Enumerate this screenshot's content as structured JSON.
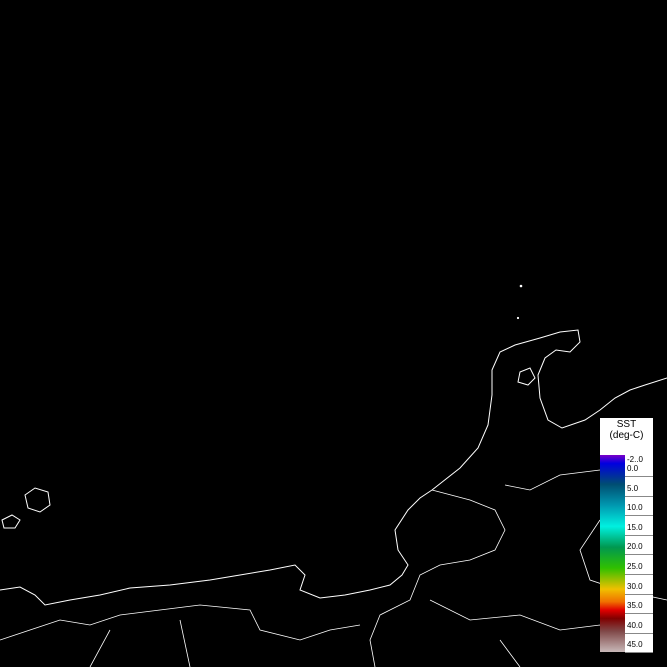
{
  "legend": {
    "title_line1": "SST",
    "title_line2": "(deg-C)",
    "ticks": [
      "-2..0",
      "0.0",
      "5.0",
      "10.0",
      "15.0",
      "20.0",
      "25.0",
      "30.0",
      "35.0",
      "40.0",
      "45.0"
    ],
    "color_stops": [
      {
        "value": -2,
        "color": "#7a00c8"
      },
      {
        "value": 0,
        "color": "#0000e0"
      },
      {
        "value": 5,
        "color": "#004e72"
      },
      {
        "value": 10,
        "color": "#0098b0"
      },
      {
        "value": 15,
        "color": "#00f0e0"
      },
      {
        "value": 20,
        "color": "#009850"
      },
      {
        "value": 25,
        "color": "#30c000"
      },
      {
        "value": 30,
        "color": "#f0c000"
      },
      {
        "value": 33,
        "color": "#f07000"
      },
      {
        "value": 35,
        "color": "#e00000"
      },
      {
        "value": 37,
        "color": "#800000"
      },
      {
        "value": 40,
        "color": "#804848"
      },
      {
        "value": 45,
        "color": "#c8b8b8"
      }
    ]
  },
  "colors": {
    "background": "#000000",
    "coastline": "#ffffff"
  }
}
